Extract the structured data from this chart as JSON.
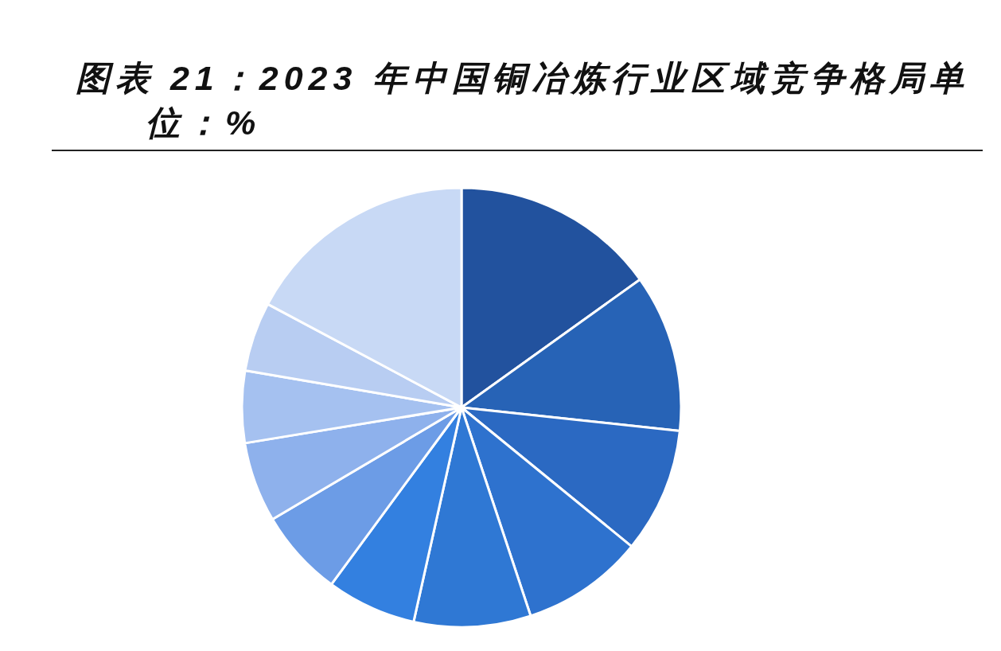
{
  "chart_data": {
    "type": "pie",
    "title": "图表 21：2023 年中国铜冶炼行业区域竞争格局单位：%",
    "categories": [
      null,
      null,
      null,
      null,
      null,
      null,
      null,
      null,
      null,
      null,
      null
    ],
    "values": [
      15.1,
      11.6,
      9.2,
      9.0,
      8.6,
      6.6,
      6.4,
      5.9,
      5.3,
      5.1,
      17.2
    ],
    "colors": [
      "#22529e",
      "#2763b6",
      "#2b69c2",
      "#2e72ce",
      "#2f78d4",
      "#3380e0",
      "#6c9ce6",
      "#8eb1ec",
      "#a5c1f0",
      "#b8cdf2",
      "#c8d9f5"
    ]
  }
}
